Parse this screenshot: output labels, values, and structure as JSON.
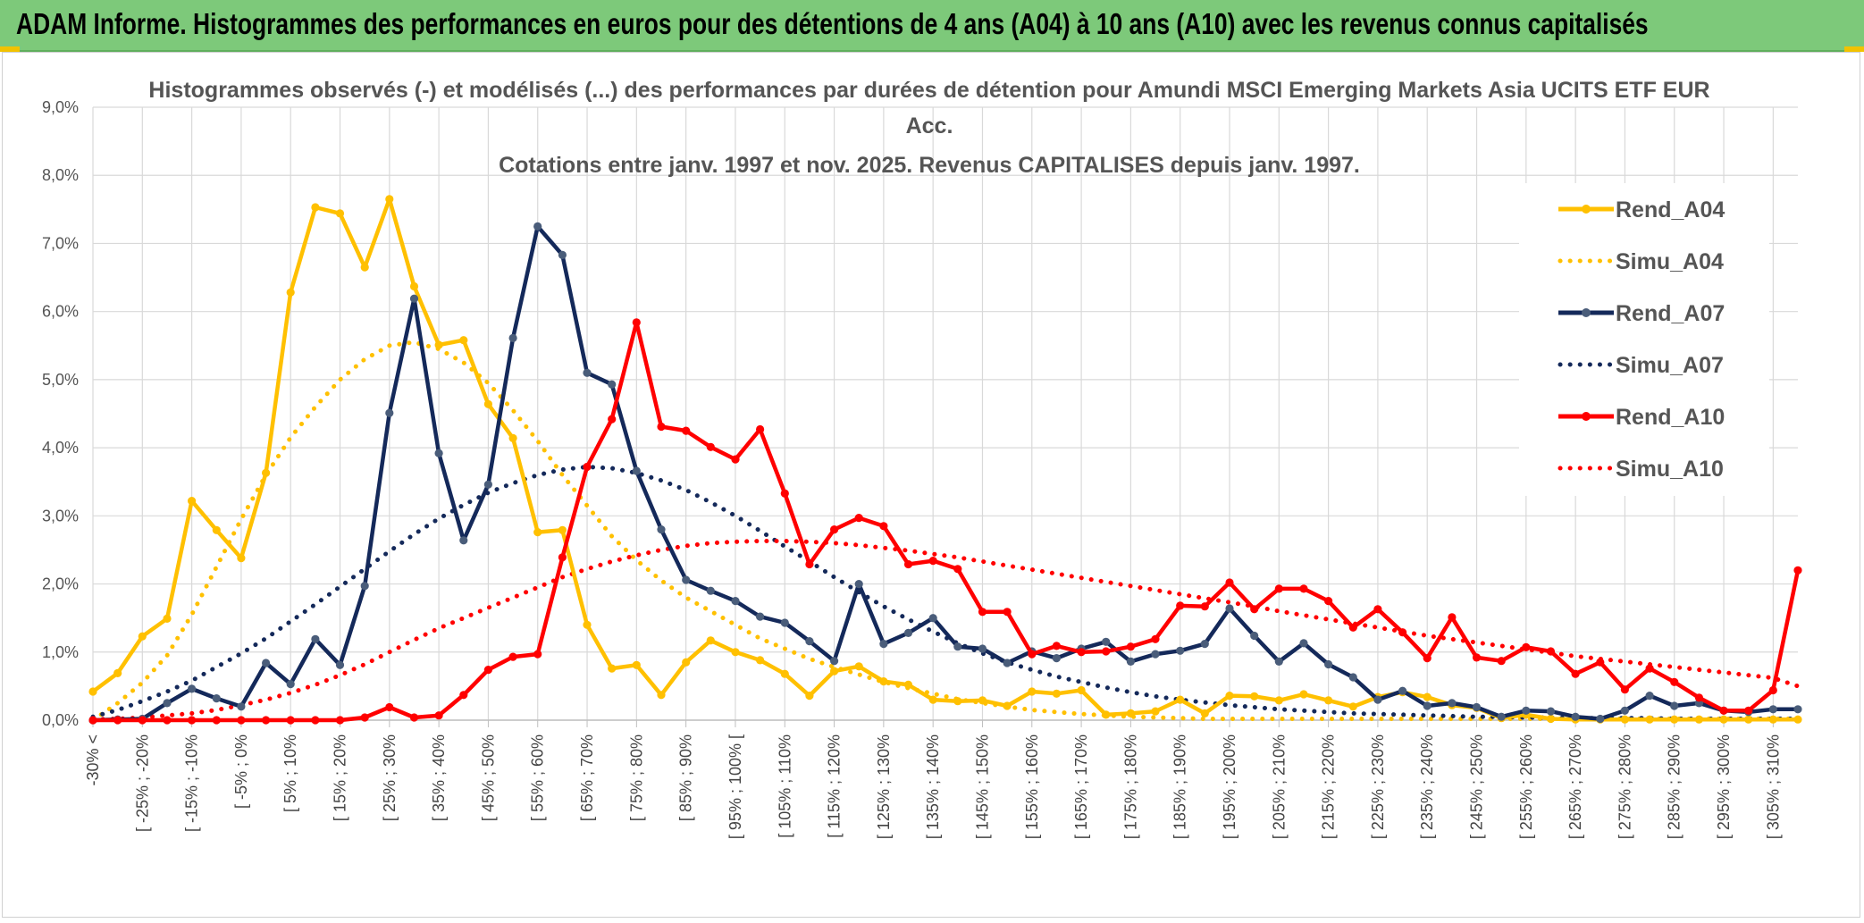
{
  "header": {
    "title": "ADAM Informe. Histogrammes des performances en euros pour des détentions de 4 ans (A04) à 10 ans (A10) avec les revenus connus capitalisés"
  },
  "chart_data": {
    "type": "line",
    "title_lines": [
      "Histogrammes observés (-) et modélisés (...) des performances par durées de détention pour Amundi MSCI Emerging Markets Asia UCITS ETF EUR",
      "Acc.",
      "Cotations entre janv. 1997 et nov. 2025. Revenus CAPITALISES depuis janv. 1997."
    ],
    "ylim": [
      0,
      9
    ],
    "y_ticks": [
      "0,0%",
      "1,0%",
      "2,0%",
      "3,0%",
      "4,0%",
      "5,0%",
      "6,0%",
      "7,0%",
      "8,0%",
      "9,0%"
    ],
    "x_ticks": [
      "-30% <",
      "[ -25% ; -20%",
      "[ -15% ; -10%",
      "[ -5% ; 0%",
      "[ 5% ; 10%",
      "[ 15% ; 20%",
      "[ 25% ; 30%",
      "[ 35% ; 40%",
      "[ 45% ; 50%",
      "[ 55% ; 60%",
      "[ 65% ; 70%",
      "[ 75% ; 80%",
      "[ 85% ; 90%",
      "[ 95% ; 100% [",
      "[ 105% ; 110%",
      "[ 115% ; 120%",
      "[ 125% ; 130%",
      "[ 135% ; 140%",
      "[ 145% ; 150%",
      "[ 155% ; 160%",
      "[ 165% ; 170%",
      "[ 175% ; 180%",
      "[ 185% ; 190%",
      "[ 195% ; 200%",
      "[ 205% ; 210%",
      "[ 215% ; 220%",
      "[ 225% ; 230%",
      "[ 235% ; 240%",
      "[ 245% ; 250%",
      "[ 255% ; 260%",
      "[ 265% ; 270%",
      "[ 275% ; 280%",
      "[ 285% ; 290%",
      "[ 295% ; 300%",
      "[ 305% ; 310%"
    ],
    "n_bins": 70,
    "grid": true,
    "legend_position": "top-right",
    "series": [
      {
        "name": "Rend_A04",
        "style": "solid",
        "color": "#ffc000",
        "values": [
          0.42,
          0.69,
          1.23,
          1.49,
          3.22,
          2.79,
          2.38,
          3.63,
          6.28,
          7.53,
          7.44,
          6.65,
          7.65,
          6.37,
          5.51,
          5.58,
          4.64,
          4.14,
          2.76,
          2.79,
          1.4,
          0.76,
          0.81,
          0.37,
          0.85,
          1.17,
          1.0,
          0.88,
          0.68,
          0.36,
          0.72,
          0.79,
          0.57,
          0.52,
          0.3,
          0.28,
          0.29,
          0.21,
          0.42,
          0.39,
          0.44,
          0.08,
          0.1,
          0.13,
          0.3,
          0.1,
          0.36,
          0.35,
          0.29,
          0.38,
          0.29,
          0.2,
          0.34,
          0.41,
          0.34,
          0.22,
          0.18,
          0.03,
          0.08,
          0.02,
          0.01,
          0.01,
          0.01,
          0.01,
          0.01,
          0.01,
          0.01,
          0.01,
          0.01,
          0.01
        ]
      },
      {
        "name": "Simu_A04",
        "style": "dotted",
        "color": "#ffc000",
        "values": [
          0.0,
          0.25,
          0.55,
          0.95,
          1.55,
          2.25,
          2.95,
          3.6,
          4.15,
          4.6,
          5.0,
          5.3,
          5.5,
          5.55,
          5.45,
          5.25,
          4.95,
          4.55,
          4.1,
          3.6,
          3.15,
          2.7,
          2.35,
          2.05,
          1.8,
          1.6,
          1.4,
          1.2,
          1.05,
          0.9,
          0.78,
          0.67,
          0.56,
          0.47,
          0.39,
          0.31,
          0.25,
          0.2,
          0.15,
          0.12,
          0.09,
          0.07,
          0.05,
          0.04,
          0.03,
          0.02,
          0.02,
          0.02,
          0.02,
          0.02,
          0.02,
          0.02,
          0.02,
          0.02,
          0.02,
          0.02,
          0.02,
          0.02,
          0.02,
          0.02,
          0.02,
          0.02,
          0.02,
          0.02,
          0.02,
          0.02,
          0.02,
          0.02,
          0.02,
          0.02
        ]
      },
      {
        "name": "Rend_A07",
        "style": "solid",
        "color": "#14295a",
        "values": [
          0.0,
          0.01,
          0.02,
          0.25,
          0.46,
          0.32,
          0.2,
          0.84,
          0.53,
          1.19,
          0.81,
          1.97,
          4.51,
          6.19,
          3.92,
          2.64,
          3.46,
          5.61,
          7.25,
          6.83,
          5.1,
          4.93,
          3.66,
          2.8,
          2.06,
          1.9,
          1.75,
          1.52,
          1.43,
          1.16,
          0.87,
          2.0,
          1.12,
          1.28,
          1.5,
          1.08,
          1.05,
          0.84,
          1.01,
          0.91,
          1.05,
          1.15,
          0.86,
          0.97,
          1.02,
          1.12,
          1.64,
          1.24,
          0.86,
          1.13,
          0.82,
          0.63,
          0.3,
          0.43,
          0.21,
          0.25,
          0.19,
          0.05,
          0.14,
          0.13,
          0.05,
          0.02,
          0.14,
          0.36,
          0.21,
          0.25,
          0.14,
          0.12,
          0.16,
          0.16
        ]
      },
      {
        "name": "Simu_A07",
        "style": "dotted",
        "color": "#14295a",
        "values": [
          0.05,
          0.15,
          0.28,
          0.42,
          0.58,
          0.78,
          0.98,
          1.2,
          1.45,
          1.7,
          1.96,
          2.22,
          2.48,
          2.73,
          2.96,
          3.16,
          3.34,
          3.48,
          3.6,
          3.68,
          3.72,
          3.7,
          3.63,
          3.52,
          3.38,
          3.2,
          3.0,
          2.78,
          2.55,
          2.33,
          2.1,
          1.88,
          1.67,
          1.48,
          1.3,
          1.13,
          0.98,
          0.85,
          0.74,
          0.64,
          0.56,
          0.48,
          0.41,
          0.35,
          0.3,
          0.26,
          0.22,
          0.19,
          0.16,
          0.14,
          0.12,
          0.1,
          0.09,
          0.08,
          0.07,
          0.06,
          0.05,
          0.05,
          0.04,
          0.04,
          0.03,
          0.03,
          0.03,
          0.03,
          0.02,
          0.02,
          0.02,
          0.02,
          0.02,
          0.02
        ]
      },
      {
        "name": "Rend_A10",
        "style": "solid",
        "color": "#ff0000",
        "values": [
          0.0,
          0.0,
          0.0,
          0.0,
          0.0,
          0.0,
          0.0,
          0.0,
          0.0,
          0.0,
          0.0,
          0.04,
          0.19,
          0.04,
          0.07,
          0.37,
          0.74,
          0.93,
          0.97,
          2.39,
          3.72,
          4.42,
          5.84,
          4.31,
          4.25,
          4.01,
          3.83,
          4.27,
          3.33,
          2.29,
          2.8,
          2.97,
          2.85,
          2.29,
          2.34,
          2.22,
          1.59,
          1.59,
          0.97,
          1.09,
          1.0,
          1.01,
          1.08,
          1.19,
          1.68,
          1.67,
          2.02,
          1.63,
          1.93,
          1.93,
          1.75,
          1.36,
          1.63,
          1.29,
          0.91,
          1.51,
          0.92,
          0.87,
          1.07,
          1.01,
          0.68,
          0.85,
          0.45,
          0.76,
          0.56,
          0.33,
          0.14,
          0.14,
          0.44,
          2.2
        ]
      },
      {
        "name": "Simu_A10",
        "style": "dotted",
        "color": "#ff0000",
        "values": [
          0.01,
          0.02,
          0.04,
          0.07,
          0.1,
          0.15,
          0.22,
          0.3,
          0.4,
          0.52,
          0.66,
          0.82,
          1.0,
          1.18,
          1.35,
          1.5,
          1.65,
          1.8,
          1.95,
          2.1,
          2.22,
          2.33,
          2.42,
          2.5,
          2.56,
          2.6,
          2.62,
          2.63,
          2.63,
          2.62,
          2.6,
          2.57,
          2.53,
          2.49,
          2.44,
          2.39,
          2.33,
          2.27,
          2.21,
          2.15,
          2.09,
          2.03,
          1.97,
          1.91,
          1.85,
          1.79,
          1.73,
          1.67,
          1.6,
          1.54,
          1.48,
          1.42,
          1.36,
          1.3,
          1.24,
          1.19,
          1.14,
          1.09,
          1.04,
          0.99,
          0.94,
          0.9,
          0.86,
          0.82,
          0.78,
          0.74,
          0.7,
          0.66,
          0.62,
          0.5
        ]
      }
    ]
  }
}
